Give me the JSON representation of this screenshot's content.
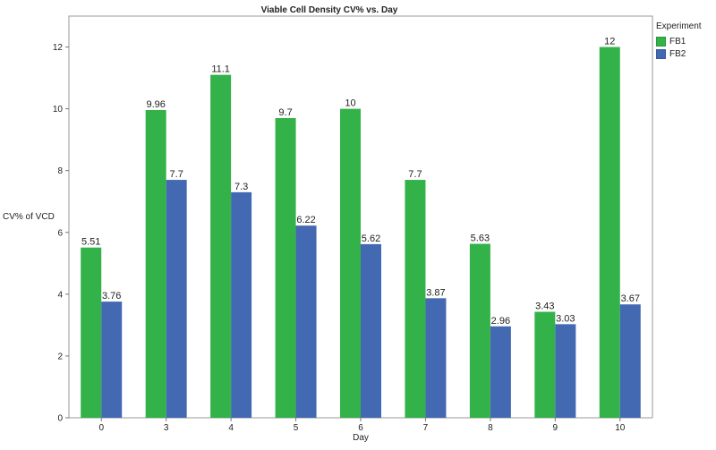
{
  "chart_data": {
    "type": "bar",
    "title": "Viable Cell Density CV% vs. Day",
    "xlabel": "Day",
    "ylabel": "CV% of VCD",
    "categories": [
      "0",
      "3",
      "4",
      "5",
      "6",
      "7",
      "8",
      "9",
      "10"
    ],
    "series": [
      {
        "name": "FB1",
        "color": "#33b249",
        "values": [
          5.51,
          9.96,
          11.1,
          9.7,
          10,
          7.7,
          5.63,
          3.43,
          12
        ],
        "labels": [
          "5.51",
          "9.96",
          "11.1",
          "9.7",
          "10",
          "7.7",
          "5.63",
          "3.43",
          "12"
        ]
      },
      {
        "name": "FB2",
        "color": "#4469b3",
        "values": [
          3.76,
          7.7,
          7.3,
          6.22,
          5.62,
          3.87,
          2.96,
          3.03,
          3.67
        ],
        "labels": [
          "3.76",
          "7.7",
          "7.3",
          "6.22",
          "5.62",
          "3.87",
          "2.96",
          "3.03",
          "3.67"
        ]
      }
    ],
    "ylim": [
      0,
      13
    ],
    "yticks": [
      "0",
      "2",
      "4",
      "6",
      "8",
      "10",
      "12"
    ],
    "grid": false,
    "legend": {
      "title": "Experiment",
      "placement": "right"
    }
  }
}
